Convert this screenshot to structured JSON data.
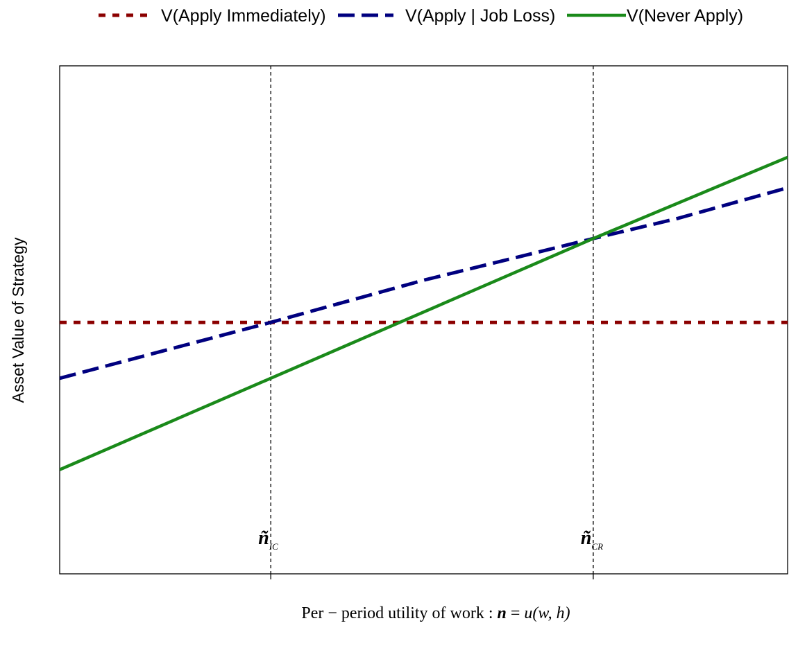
{
  "chart_data": {
    "type": "line",
    "title": "",
    "xlabel": {
      "plain": "Per − period  utility  of  work : ",
      "symbol": "n",
      "equals": " = ",
      "func": "u",
      "args": "(w, h)"
    },
    "ylabel": "Asset Value of Strategy",
    "xlim": [
      0,
      1
    ],
    "ylim": [
      0,
      1
    ],
    "grid": false,
    "legend_position": "top",
    "x_ticks": [
      {
        "x": 0.29,
        "symbol": "ñ",
        "sub": "IC"
      },
      {
        "x": 0.733,
        "symbol": "ñ",
        "sub": "CR"
      }
    ],
    "vlines": [
      0.29,
      0.733
    ],
    "series": [
      {
        "name": "V(Apply Immediately)",
        "color": "#8b0000",
        "style": "dotted",
        "x": [
          0,
          1
        ],
        "y": [
          0.495,
          0.495
        ]
      },
      {
        "name": "V(Apply | Job Loss)",
        "color": "#00007f",
        "style": "dashed",
        "x": [
          0,
          0.29,
          0.5,
          0.733,
          0.85,
          1
        ],
        "y": [
          0.385,
          0.495,
          0.578,
          0.66,
          0.7,
          0.76
        ]
      },
      {
        "name": "V(Never Apply)",
        "color": "#1a8a1a",
        "style": "solid",
        "x": [
          0,
          0.29,
          0.733,
          1
        ],
        "y": [
          0.205,
          0.385,
          0.66,
          0.82
        ]
      }
    ]
  }
}
